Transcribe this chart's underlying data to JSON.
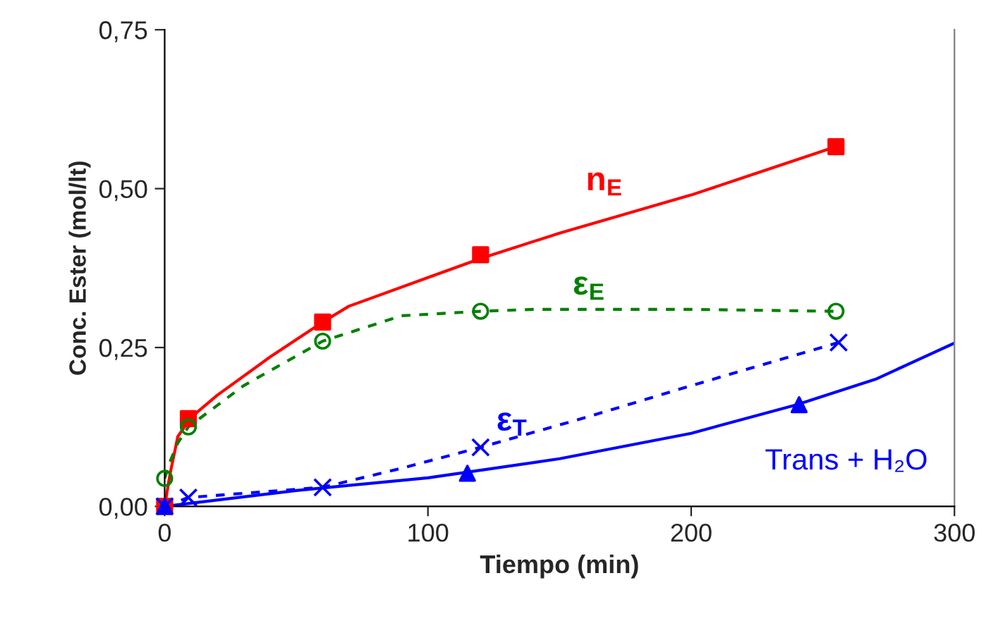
{
  "chart_data": {
    "type": "line",
    "xlabel": "Tiempo (min)",
    "ylabel": "Conc. Ester (mol/lt)",
    "xlim": [
      0,
      300
    ],
    "ylim": [
      0,
      0.75
    ],
    "xticks": [
      0,
      100,
      200,
      300
    ],
    "yticks": [
      {
        "value": 0,
        "label": "0,00"
      },
      {
        "value": 0.25,
        "label": "0,25"
      },
      {
        "value": 0.5,
        "label": "0,50"
      },
      {
        "value": 0.75,
        "label": "0,75"
      }
    ],
    "grid": false,
    "legend": false,
    "series": [
      {
        "color": "#ff0000",
        "line_style": "solid",
        "marker": "none",
        "x": [
          0,
          2,
          5,
          10,
          20,
          40,
          60,
          70,
          100,
          120,
          150,
          200,
          255
        ],
        "values": [
          0,
          0.05,
          0.11,
          0.14,
          0.175,
          0.235,
          0.29,
          0.315,
          0.36,
          0.39,
          0.43,
          0.49,
          0.566
        ]
      },
      {
        "type": "scatter",
        "name": "n$_{E}$",
        "color": "#ff0000",
        "marker": "square",
        "x": [
          0,
          9,
          60,
          120,
          255
        ],
        "values": [
          0,
          0.138,
          0.29,
          0.396,
          0.566
        ]
      },
      {
        "color": "#008000",
        "line_style": "dashed",
        "marker": "none",
        "x": [
          0,
          2,
          5,
          9,
          30,
          60,
          90,
          120,
          140,
          200,
          255
        ],
        "values": [
          0.044,
          0.07,
          0.1,
          0.125,
          0.19,
          0.26,
          0.3,
          0.307,
          0.31,
          0.31,
          0.307
        ]
      },
      {
        "type": "scatter",
        "name": "ε$_{E}$",
        "color": "#008000",
        "marker": "circle",
        "x": [
          0,
          9,
          60,
          120,
          255
        ],
        "values": [
          0.044,
          0.125,
          0.26,
          0.307,
          0.307
        ]
      },
      {
        "color": "#0000ff",
        "line_style": "dashed",
        "marker": "none",
        "x": [
          0,
          9,
          60,
          90,
          120,
          160,
          200,
          256
        ],
        "values": [
          0,
          0.014,
          0.03,
          0.06,
          0.093,
          0.14,
          0.19,
          0.258
        ]
      },
      {
        "type": "scatter",
        "name": "ε$_{T}$",
        "color": "#0000ff",
        "marker": "cross",
        "x": [
          0,
          9,
          60,
          120,
          256
        ],
        "values": [
          0,
          0.014,
          0.03,
          0.093,
          0.258
        ]
      },
      {
        "color": "#0000ff",
        "line_style": "solid",
        "marker": "none",
        "x": [
          0,
          50,
          100,
          150,
          200,
          240,
          270,
          300
        ],
        "values": [
          0,
          0.025,
          0.045,
          0.075,
          0.115,
          0.16,
          0.2,
          0.257
        ]
      },
      {
        "type": "scatter",
        "name": "Trans + H₂O",
        "color": "#0000ff",
        "marker": "triangle",
        "x": [
          0,
          115,
          241
        ],
        "values": [
          0,
          0.052,
          0.16
        ]
      }
    ]
  }
}
